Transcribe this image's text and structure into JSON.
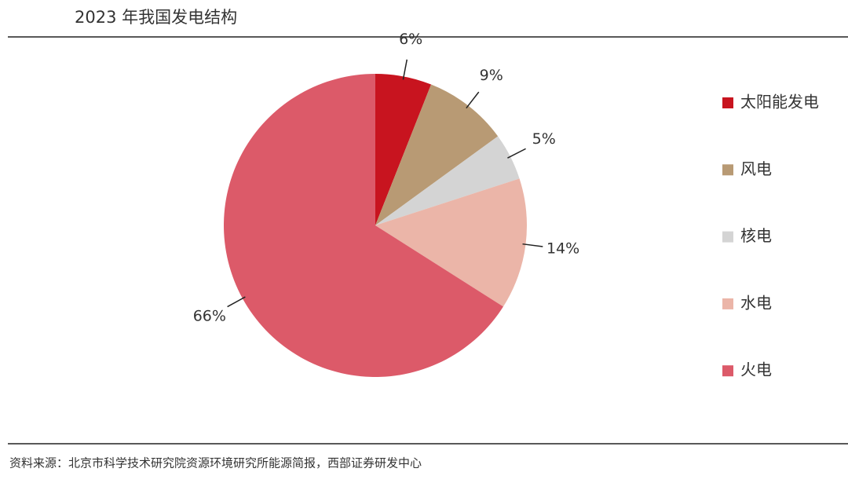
{
  "chart_data": {
    "type": "pie",
    "title": "2023 年我国发电结构",
    "categories": [
      "太阳能发电",
      "风电",
      "核电",
      "水电",
      "火电"
    ],
    "values": [
      6,
      9,
      5,
      14,
      66
    ],
    "value_labels": [
      "6%",
      "9%",
      "5%",
      "14%",
      "66%"
    ],
    "colors": [
      "#c8141f",
      "#b89a74",
      "#d4d4d4",
      "#ebb5a8",
      "#dc5a69"
    ],
    "legend": "right"
  },
  "source": "资料来源：北京市科学技术研究院资源环境研究所能源简报，西部证券研发中心"
}
